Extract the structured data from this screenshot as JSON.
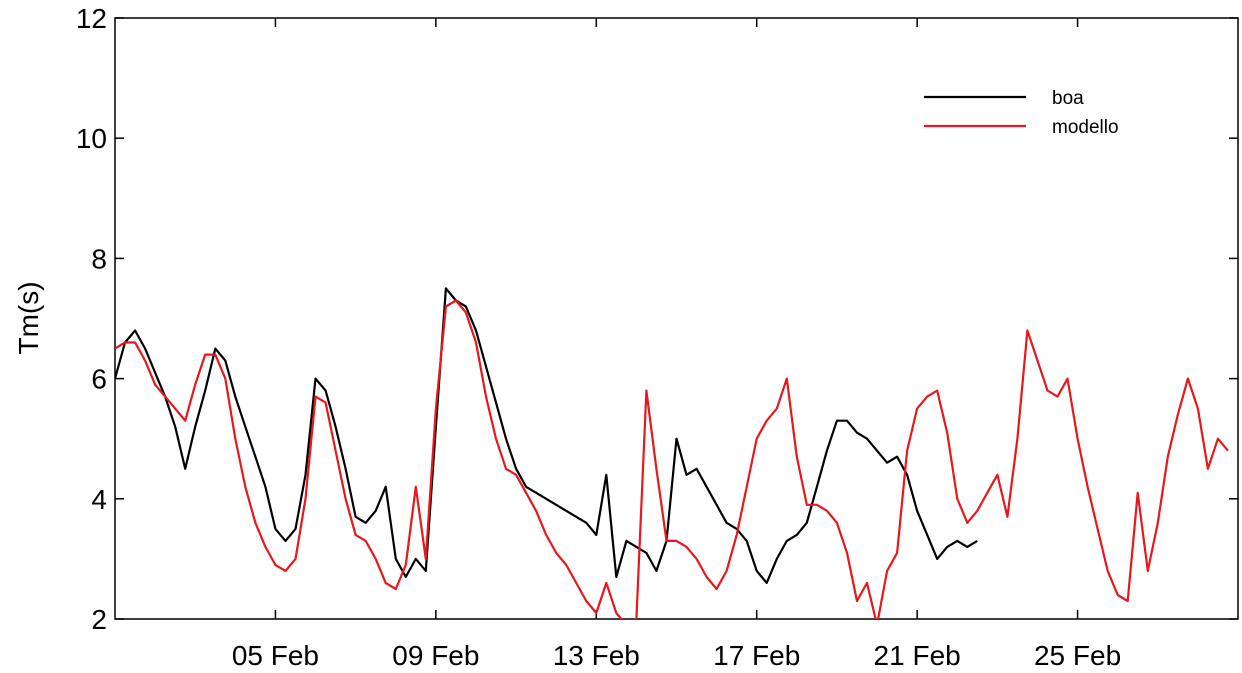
{
  "chart_data": {
    "type": "line",
    "title": "",
    "xlabel": "",
    "ylabel": "Tm(s)",
    "xlim": [
      "2014-02-01",
      "2014-02-29"
    ],
    "ylim": [
      2,
      12
    ],
    "x_ticks": [
      {
        "date": "2014-02-05",
        "label": "05 Feb"
      },
      {
        "date": "2014-02-09",
        "label": "09 Feb"
      },
      {
        "date": "2014-02-13",
        "label": "13 Feb"
      },
      {
        "date": "2014-02-17",
        "label": "17 Feb"
      },
      {
        "date": "2014-02-21",
        "label": "21 Feb"
      },
      {
        "date": "2014-02-25",
        "label": "25 Feb"
      }
    ],
    "y_ticks": [
      2,
      4,
      6,
      8,
      10,
      12
    ],
    "grid": false,
    "legend_position": "top-right",
    "series": [
      {
        "name": "boa",
        "color": "#000000",
        "points": [
          [
            "2014-02-01 00:00",
            6.0
          ],
          [
            "2014-02-01 06:00",
            6.6
          ],
          [
            "2014-02-01 12:00",
            6.8
          ],
          [
            "2014-02-01 18:00",
            6.5
          ],
          [
            "2014-02-02 00:00",
            6.1
          ],
          [
            "2014-02-02 06:00",
            5.7
          ],
          [
            "2014-02-02 12:00",
            5.2
          ],
          [
            "2014-02-02 18:00",
            4.5
          ],
          [
            "2014-02-03 00:00",
            5.2
          ],
          [
            "2014-02-03 06:00",
            5.8
          ],
          [
            "2014-02-03 12:00",
            6.5
          ],
          [
            "2014-02-03 18:00",
            6.3
          ],
          [
            "2014-02-04 00:00",
            5.7
          ],
          [
            "2014-02-04 06:00",
            5.2
          ],
          [
            "2014-02-04 12:00",
            4.7
          ],
          [
            "2014-02-04 18:00",
            4.2
          ],
          [
            "2014-02-05 00:00",
            3.5
          ],
          [
            "2014-02-05 06:00",
            3.3
          ],
          [
            "2014-02-05 12:00",
            3.5
          ],
          [
            "2014-02-05 18:00",
            4.4
          ],
          [
            "2014-02-06 00:00",
            6.0
          ],
          [
            "2014-02-06 06:00",
            5.8
          ],
          [
            "2014-02-06 12:00",
            5.2
          ],
          [
            "2014-02-06 18:00",
            4.5
          ],
          [
            "2014-02-07 00:00",
            3.7
          ],
          [
            "2014-02-07 06:00",
            3.6
          ],
          [
            "2014-02-07 12:00",
            3.8
          ],
          [
            "2014-02-07 18:00",
            4.2
          ],
          [
            "2014-02-08 00:00",
            3.0
          ],
          [
            "2014-02-08 06:00",
            2.7
          ],
          [
            "2014-02-08 12:00",
            3.0
          ],
          [
            "2014-02-08 18:00",
            2.8
          ],
          [
            "2014-02-09 00:00",
            5.2
          ],
          [
            "2014-02-09 06:00",
            7.5
          ],
          [
            "2014-02-09 12:00",
            7.3
          ],
          [
            "2014-02-09 18:00",
            7.2
          ],
          [
            "2014-02-10 00:00",
            6.8
          ],
          [
            "2014-02-10 06:00",
            6.2
          ],
          [
            "2014-02-10 12:00",
            5.6
          ],
          [
            "2014-02-10 18:00",
            5.0
          ],
          [
            "2014-02-11 00:00",
            4.5
          ],
          [
            "2014-02-11 06:00",
            4.2
          ],
          [
            "2014-02-11 12:00",
            4.1
          ],
          [
            "2014-02-11 18:00",
            4.0
          ],
          [
            "2014-02-12 00:00",
            3.9
          ],
          [
            "2014-02-12 06:00",
            3.8
          ],
          [
            "2014-02-12 12:00",
            3.7
          ],
          [
            "2014-02-12 18:00",
            3.6
          ],
          [
            "2014-02-13 00:00",
            3.4
          ],
          [
            "2014-02-13 06:00",
            4.4
          ],
          [
            "2014-02-13 12:00",
            2.7
          ],
          [
            "2014-02-13 18:00",
            3.3
          ],
          [
            "2014-02-14 00:00",
            3.2
          ],
          [
            "2014-02-14 06:00",
            3.1
          ],
          [
            "2014-02-14 12:00",
            2.8
          ],
          [
            "2014-02-14 18:00",
            3.3
          ],
          [
            "2014-02-15 00:00",
            5.0
          ],
          [
            "2014-02-15 06:00",
            4.4
          ],
          [
            "2014-02-15 12:00",
            4.5
          ],
          [
            "2014-02-15 18:00",
            4.2
          ],
          [
            "2014-02-16 00:00",
            3.9
          ],
          [
            "2014-02-16 06:00",
            3.6
          ],
          [
            "2014-02-16 12:00",
            3.5
          ],
          [
            "2014-02-16 18:00",
            3.3
          ],
          [
            "2014-02-17 00:00",
            2.8
          ],
          [
            "2014-02-17 06:00",
            2.6
          ],
          [
            "2014-02-17 12:00",
            3.0
          ],
          [
            "2014-02-17 18:00",
            3.3
          ],
          [
            "2014-02-18 00:00",
            3.4
          ],
          [
            "2014-02-18 06:00",
            3.6
          ],
          [
            "2014-02-18 12:00",
            4.2
          ],
          [
            "2014-02-18 18:00",
            4.8
          ],
          [
            "2014-02-19 00:00",
            5.3
          ],
          [
            "2014-02-19 06:00",
            5.3
          ],
          [
            "2014-02-19 12:00",
            5.1
          ],
          [
            "2014-02-19 18:00",
            5.0
          ],
          [
            "2014-02-20 00:00",
            4.8
          ],
          [
            "2014-02-20 06:00",
            4.6
          ],
          [
            "2014-02-20 12:00",
            4.7
          ],
          [
            "2014-02-20 18:00",
            4.4
          ],
          [
            "2014-02-21 00:00",
            3.8
          ],
          [
            "2014-02-21 06:00",
            3.4
          ],
          [
            "2014-02-21 12:00",
            3.0
          ],
          [
            "2014-02-21 18:00",
            3.2
          ],
          [
            "2014-02-22 00:00",
            3.3
          ],
          [
            "2014-02-22 06:00",
            3.2
          ],
          [
            "2014-02-22 12:00",
            3.3
          ]
        ]
      },
      {
        "name": "modello",
        "color": "#e8171b",
        "points": [
          [
            "2014-02-01 00:00",
            6.5
          ],
          [
            "2014-02-01 06:00",
            6.6
          ],
          [
            "2014-02-01 12:00",
            6.6
          ],
          [
            "2014-02-01 18:00",
            6.3
          ],
          [
            "2014-02-02 00:00",
            5.9
          ],
          [
            "2014-02-02 06:00",
            5.7
          ],
          [
            "2014-02-02 12:00",
            5.5
          ],
          [
            "2014-02-02 18:00",
            5.3
          ],
          [
            "2014-02-03 00:00",
            5.9
          ],
          [
            "2014-02-03 06:00",
            6.4
          ],
          [
            "2014-02-03 12:00",
            6.4
          ],
          [
            "2014-02-03 18:00",
            6.0
          ],
          [
            "2014-02-04 00:00",
            5.0
          ],
          [
            "2014-02-04 06:00",
            4.2
          ],
          [
            "2014-02-04 12:00",
            3.6
          ],
          [
            "2014-02-04 18:00",
            3.2
          ],
          [
            "2014-02-05 00:00",
            2.9
          ],
          [
            "2014-02-05 06:00",
            2.8
          ],
          [
            "2014-02-05 12:00",
            3.0
          ],
          [
            "2014-02-05 18:00",
            4.0
          ],
          [
            "2014-02-06 00:00",
            5.7
          ],
          [
            "2014-02-06 06:00",
            5.6
          ],
          [
            "2014-02-06 12:00",
            4.8
          ],
          [
            "2014-02-06 18:00",
            4.0
          ],
          [
            "2014-02-07 00:00",
            3.4
          ],
          [
            "2014-02-07 06:00",
            3.3
          ],
          [
            "2014-02-07 12:00",
            3.0
          ],
          [
            "2014-02-07 18:00",
            2.6
          ],
          [
            "2014-02-08 00:00",
            2.5
          ],
          [
            "2014-02-08 06:00",
            2.9
          ],
          [
            "2014-02-08 12:00",
            4.2
          ],
          [
            "2014-02-08 18:00",
            3.0
          ],
          [
            "2014-02-09 00:00",
            5.5
          ],
          [
            "2014-02-09 06:00",
            7.2
          ],
          [
            "2014-02-09 12:00",
            7.3
          ],
          [
            "2014-02-09 18:00",
            7.1
          ],
          [
            "2014-02-10 00:00",
            6.6
          ],
          [
            "2014-02-10 06:00",
            5.7
          ],
          [
            "2014-02-10 12:00",
            5.0
          ],
          [
            "2014-02-10 18:00",
            4.5
          ],
          [
            "2014-02-11 00:00",
            4.4
          ],
          [
            "2014-02-11 06:00",
            4.1
          ],
          [
            "2014-02-11 12:00",
            3.8
          ],
          [
            "2014-02-11 18:00",
            3.4
          ],
          [
            "2014-02-12 00:00",
            3.1
          ],
          [
            "2014-02-12 06:00",
            2.9
          ],
          [
            "2014-02-12 12:00",
            2.6
          ],
          [
            "2014-02-12 18:00",
            2.3
          ],
          [
            "2014-02-13 00:00",
            2.1
          ],
          [
            "2014-02-13 06:00",
            2.6
          ],
          [
            "2014-02-13 12:00",
            2.1
          ],
          [
            "2014-02-13 18:00",
            1.9
          ],
          [
            "2014-02-14 00:00",
            2.0
          ],
          [
            "2014-02-14 06:00",
            5.8
          ],
          [
            "2014-02-14 12:00",
            4.5
          ],
          [
            "2014-02-14 18:00",
            3.3
          ],
          [
            "2014-02-15 00:00",
            3.3
          ],
          [
            "2014-02-15 06:00",
            3.2
          ],
          [
            "2014-02-15 12:00",
            3.0
          ],
          [
            "2014-02-15 18:00",
            2.7
          ],
          [
            "2014-02-16 00:00",
            2.5
          ],
          [
            "2014-02-16 06:00",
            2.8
          ],
          [
            "2014-02-16 12:00",
            3.4
          ],
          [
            "2014-02-16 18:00",
            4.2
          ],
          [
            "2014-02-17 00:00",
            5.0
          ],
          [
            "2014-02-17 06:00",
            5.3
          ],
          [
            "2014-02-17 12:00",
            5.5
          ],
          [
            "2014-02-17 18:00",
            6.0
          ],
          [
            "2014-02-18 00:00",
            4.7
          ],
          [
            "2014-02-18 06:00",
            3.9
          ],
          [
            "2014-02-18 12:00",
            3.9
          ],
          [
            "2014-02-18 18:00",
            3.8
          ],
          [
            "2014-02-19 00:00",
            3.6
          ],
          [
            "2014-02-19 06:00",
            3.1
          ],
          [
            "2014-02-19 12:00",
            2.3
          ],
          [
            "2014-02-19 18:00",
            2.6
          ],
          [
            "2014-02-20 00:00",
            1.9
          ],
          [
            "2014-02-20 06:00",
            2.8
          ],
          [
            "2014-02-20 12:00",
            3.1
          ],
          [
            "2014-02-20 18:00",
            4.8
          ],
          [
            "2014-02-21 00:00",
            5.5
          ],
          [
            "2014-02-21 06:00",
            5.7
          ],
          [
            "2014-02-21 12:00",
            5.8
          ],
          [
            "2014-02-21 18:00",
            5.1
          ],
          [
            "2014-02-22 00:00",
            4.0
          ],
          [
            "2014-02-22 06:00",
            3.6
          ],
          [
            "2014-02-22 12:00",
            3.8
          ],
          [
            "2014-02-22 18:00",
            4.1
          ],
          [
            "2014-02-23 00:00",
            4.4
          ],
          [
            "2014-02-23 06:00",
            3.7
          ],
          [
            "2014-02-23 12:00",
            5.0
          ],
          [
            "2014-02-23 18:00",
            6.8
          ],
          [
            "2014-02-24 00:00",
            6.3
          ],
          [
            "2014-02-24 06:00",
            5.8
          ],
          [
            "2014-02-24 12:00",
            5.7
          ],
          [
            "2014-02-24 18:00",
            6.0
          ],
          [
            "2014-02-25 00:00",
            5.0
          ],
          [
            "2014-02-25 06:00",
            4.2
          ],
          [
            "2014-02-25 12:00",
            3.5
          ],
          [
            "2014-02-25 18:00",
            2.8
          ],
          [
            "2014-02-26 00:00",
            2.4
          ],
          [
            "2014-02-26 06:00",
            2.3
          ],
          [
            "2014-02-26 12:00",
            4.1
          ],
          [
            "2014-02-26 18:00",
            2.8
          ],
          [
            "2014-02-27 00:00",
            3.6
          ],
          [
            "2014-02-27 06:00",
            4.7
          ],
          [
            "2014-02-27 12:00",
            5.4
          ],
          [
            "2014-02-27 18:00",
            6.0
          ],
          [
            "2014-02-28 00:00",
            5.5
          ],
          [
            "2014-02-28 06:00",
            4.5
          ],
          [
            "2014-02-28 12:00",
            5.0
          ],
          [
            "2014-02-28 18:00",
            4.8
          ]
        ]
      }
    ]
  }
}
